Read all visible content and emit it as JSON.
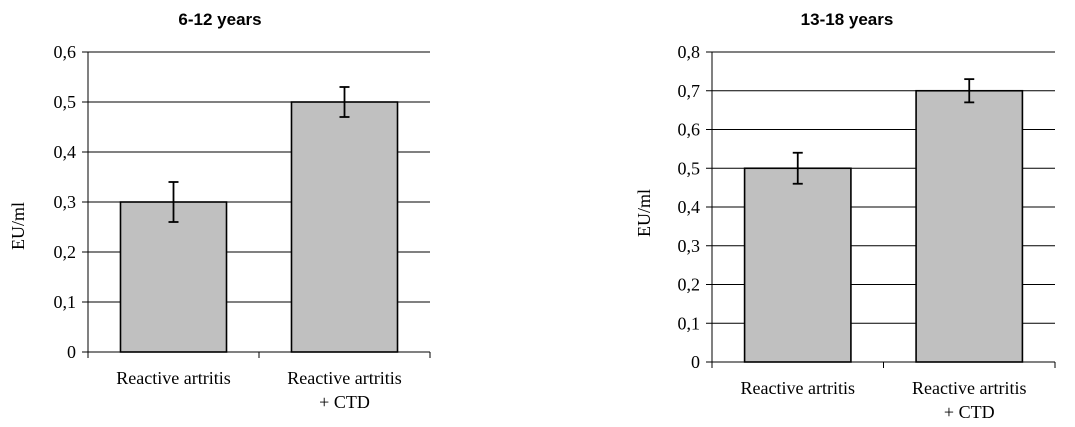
{
  "chart_data": [
    {
      "type": "bar",
      "title": "6-12 years",
      "ylabel": "EU/ml",
      "xlabel": "",
      "ylim": [
        0,
        0.6
      ],
      "ytick_step": 0.1,
      "yticks": [
        "0",
        "0,1",
        "0,2",
        "0,3",
        "0,4",
        "0,5",
        "0,6"
      ],
      "grid": true,
      "categories": [
        [
          "Reactive artritis"
        ],
        [
          "Reactive artritis",
          "+ CTD"
        ]
      ],
      "values": [
        0.3,
        0.5
      ],
      "errors": [
        0.04,
        0.03
      ],
      "bar_color": "#c0c0c0"
    },
    {
      "type": "bar",
      "title": "13-18 years",
      "ylabel": "EU/ml",
      "xlabel": "",
      "ylim": [
        0,
        0.8
      ],
      "ytick_step": 0.1,
      "yticks": [
        "0",
        "0,1",
        "0,2",
        "0,3",
        "0,4",
        "0,5",
        "0,6",
        "0,7",
        "0,8"
      ],
      "grid": true,
      "categories": [
        [
          "Reactive artritis"
        ],
        [
          "Reactive artritis",
          "+ CTD"
        ]
      ],
      "values": [
        0.5,
        0.7
      ],
      "errors": [
        0.04,
        0.03
      ],
      "bar_color": "#c0c0c0"
    }
  ]
}
